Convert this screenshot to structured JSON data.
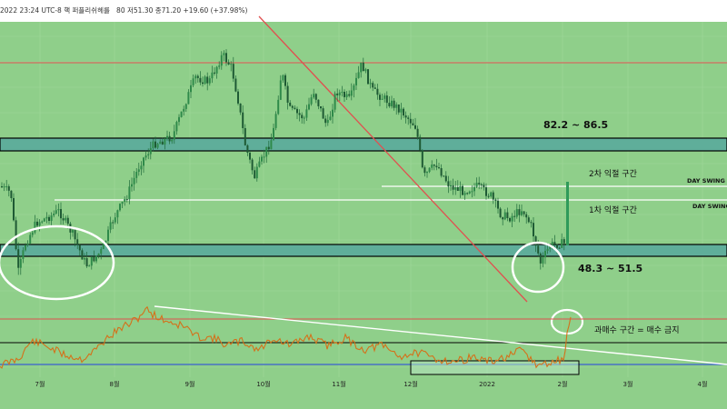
{
  "header": {
    "info_line": "2022 23:24 UTC-8 핵 퍼플리쉬헤를",
    "values": [
      "80",
      "저51.30",
      "종71.20",
      "+19.60 (+37.98%)"
    ]
  },
  "zones": {
    "upper_label": "82.2 ~ 86.5",
    "lower_label": "48.3 ~ 51.5"
  },
  "annotations": {
    "second_take_profit": "2차 익절 구간",
    "first_take_profit": "1차 익절 구간",
    "day_swing_low_1": "DAY SWING L",
    "day_swing_low_2": "DAY SWING",
    "overbought_note": "과매수 구간 = 매수 금지"
  },
  "x_axis": {
    "labels": [
      "7월",
      "8월",
      "9월",
      "10월",
      "11월",
      "12월",
      "2022",
      "2월",
      "3월",
      "4월"
    ]
  },
  "colors": {
    "background": "#8fcf8a",
    "zone_fill": "#5fae9a",
    "red_line": "#e05050",
    "rsi_line": "#d4711a",
    "blue_line": "#3a5fd0",
    "candle": "#1e6a3a",
    "white": "#ffffff"
  },
  "chart_data": {
    "type": "candlestick",
    "x": [
      "7월",
      "8월",
      "9월",
      "10월",
      "11월",
      "12월",
      "2022",
      "2월",
      "3월",
      "4월"
    ],
    "resistance_zone": [
      82.2,
      86.5
    ],
    "support_zone": [
      48.3,
      51.5
    ]
  }
}
